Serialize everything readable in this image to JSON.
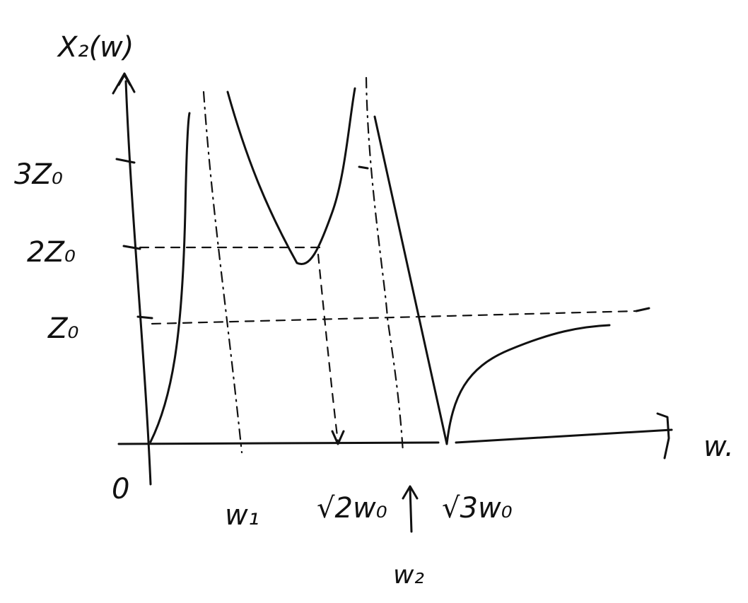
{
  "axes": {
    "y_label": "X₂(w)",
    "x_label": "w.",
    "origin_label": "0"
  },
  "y_ticks": [
    "3Z₀",
    "2Z₀",
    "Z₀"
  ],
  "x_ticks": [
    "w₁",
    "√2w₀",
    "√3w₀"
  ],
  "annotation": "w₂",
  "colors": {
    "ink": "#111111",
    "background": "#ffffff"
  }
}
